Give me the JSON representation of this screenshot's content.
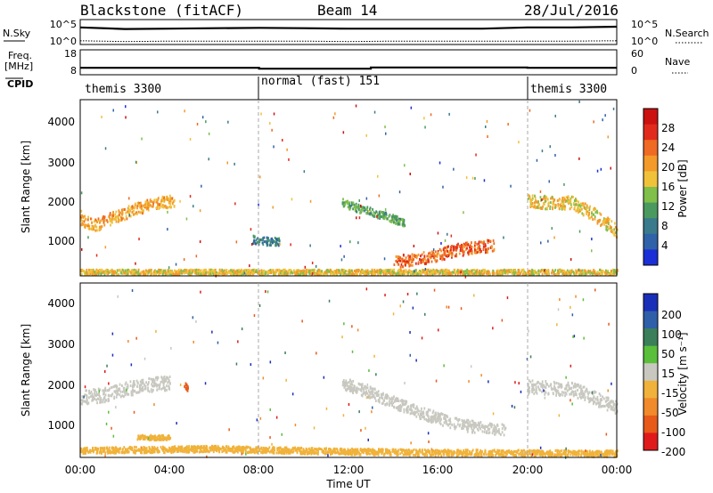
{
  "header": {
    "station": "Blackstone (fitACF)",
    "beam": "Beam 14",
    "date": "28/Jul/2016"
  },
  "noise_panel": {
    "left_label": "N.Sky",
    "right_label": "N.Search",
    "left_ticks": [
      "10^5",
      "10^0"
    ],
    "right_ticks": [
      "10^5",
      "10^0"
    ]
  },
  "freq_panel": {
    "left_label_line1": "Freq.",
    "left_label_line2": "[MHz]",
    "right_label": "Nave",
    "left_ticks": [
      "18",
      "8"
    ],
    "right_ticks": [
      "60",
      "0"
    ]
  },
  "cpid": {
    "label": "CPID",
    "segments": [
      {
        "name": "themis 3300",
        "start_h": 0,
        "end_h": 8
      },
      {
        "name": "normal (fast) 151",
        "start_h": 8,
        "end_h": 20
      },
      {
        "name": "themis 3300",
        "start_h": 20,
        "end_h": 24
      }
    ]
  },
  "xaxis": {
    "label": "Time UT",
    "ticks": [
      "00:00",
      "04:00",
      "08:00",
      "12:00",
      "16:00",
      "20:00",
      "00:00"
    ]
  },
  "power_panel": {
    "ylabel": "Slant Range [km]",
    "yticks": [
      "1000",
      "2000",
      "3000",
      "4000"
    ],
    "cbar_label": "Power [dB]",
    "cbar_ticks": [
      "4",
      "8",
      "12",
      "16",
      "20",
      "24",
      "28"
    ]
  },
  "velocity_panel": {
    "ylabel": "Slant Range [km]",
    "yticks": [
      "1000",
      "2000",
      "3000",
      "4000"
    ],
    "cbar_label": "Velocity [m s⁻¹]",
    "cbar_ticks": [
      "200",
      "100",
      "50",
      "15",
      "-15",
      "-50",
      "-100",
      "-200"
    ]
  },
  "colors": {
    "power_scale": [
      "#1b2fd6",
      "#2f62a8",
      "#3a7a8c",
      "#4a9a60",
      "#7fbf4a",
      "#f0c23a",
      "#f39a2a",
      "#ef6a22",
      "#e22a1c",
      "#cc1111"
    ],
    "velocity_scale": [
      "#1a2fb8",
      "#2f5fa8",
      "#3a7f5a",
      "#5abf3a",
      "#c8c8c0",
      "#f0b23a",
      "#f08a2a",
      "#e85a1a",
      "#e01a1a"
    ],
    "ground_scatter": "#c8c8c0"
  },
  "chart_data": [
    {
      "type": "line",
      "title": "",
      "series": [
        {
          "name": "N.Sky",
          "x": [
            0,
            2,
            4,
            6,
            8,
            10,
            12,
            14,
            16,
            18,
            20,
            22,
            24
          ],
          "y": [
            3.9,
            3.5,
            3.6,
            3.7,
            3.8,
            3.7,
            3.6,
            3.6,
            3.6,
            3.6,
            3.9,
            3.9,
            4.1
          ]
        },
        {
          "name": "N.Search",
          "x": [
            0,
            2,
            4,
            6,
            8,
            10,
            12,
            14,
            16,
            18,
            20,
            22,
            24
          ],
          "y": [
            0.5,
            0.3,
            0.4,
            0.4,
            0.4,
            0.4,
            0.3,
            0.4,
            0.4,
            0.4,
            0.4,
            0.4,
            0.5
          ]
        }
      ],
      "xlim": [
        0,
        24
      ]
    },
    {
      "type": "line",
      "title": "",
      "series": [
        {
          "name": "Freq.",
          "x": [
            0,
            8,
            8,
            13,
            13,
            20,
            20,
            24
          ],
          "y": [
            10.4,
            10.4,
            10.0,
            10.0,
            10.6,
            10.6,
            10.4,
            10.4
          ]
        }
      ],
      "ylabel": "Freq. [MHz]",
      "ylim": [
        8,
        18
      ],
      "xlim": [
        0,
        24
      ]
    },
    {
      "type": "heatmap",
      "title": "",
      "xlabel": "Time UT",
      "ylabel": "Slant Range [km]",
      "xlim": [
        0,
        24
      ],
      "ylim": [
        180,
        4500
      ],
      "colorbar": {
        "label": "Power [dB]",
        "range": [
          0,
          32
        ],
        "ticks": [
          4,
          8,
          12,
          16,
          20,
          24,
          28
        ]
      },
      "features": [
        {
          "x": [
            0.0,
            0.7,
            1.5,
            2.5,
            3.5,
            4.2
          ],
          "y": [
            1550,
            1450,
            1650,
            1850,
            2000,
            2050
          ],
          "value": 20,
          "width_km": 300
        },
        {
          "x": [
            7.7,
            8.2,
            8.9
          ],
          "y": [
            1100,
            1050,
            1050
          ],
          "value": 8,
          "width_km": 200
        },
        {
          "x": [
            11.7,
            12.5,
            13.5,
            14.5
          ],
          "y": [
            2000,
            1850,
            1700,
            1500
          ],
          "value": 12,
          "width_km": 200
        },
        {
          "x": [
            14.0,
            15.5,
            16.5,
            17.5,
            18.5
          ],
          "y": [
            550,
            650,
            800,
            900,
            950
          ],
          "value": 24,
          "width_km": 300
        },
        {
          "x": [
            20.0,
            21.0,
            22.0,
            23.0,
            24.0
          ],
          "y": [
            2050,
            2000,
            2000,
            1700,
            1300
          ],
          "value": 18,
          "width_km": 320
        },
        {
          "x": [
            0,
            4,
            8,
            12,
            16,
            20,
            24
          ],
          "y": [
            300,
            300,
            300,
            300,
            300,
            300,
            300
          ],
          "value": 18,
          "width_km": 120
        }
      ]
    },
    {
      "type": "heatmap",
      "title": "",
      "xlabel": "Time UT",
      "ylabel": "Slant Range [km]",
      "xlim": [
        0,
        24
      ],
      "ylim": [
        180,
        4500
      ],
      "colorbar": {
        "label": "Velocity [m s⁻¹]",
        "range": [
          -200,
          200
        ],
        "ticks": [
          200,
          100,
          50,
          15,
          -15,
          -50,
          -100,
          -200
        ]
      },
      "features": [
        {
          "x": [
            0.0,
            1.0,
            2.0,
            3.0,
            4.0
          ],
          "y": [
            1700,
            1750,
            1900,
            2000,
            2050
          ],
          "value": 0,
          "width_km": 350
        },
        {
          "x": [
            11.7,
            13.0,
            15.0,
            17.0,
            19.0
          ],
          "y": [
            2050,
            1800,
            1350,
            1000,
            900
          ],
          "value": 0,
          "width_km": 300
        },
        {
          "x": [
            20.0,
            22.0,
            24.0
          ],
          "y": [
            1950,
            1900,
            1450
          ],
          "value": 0,
          "width_km": 350
        },
        {
          "x": [
            4.6,
            4.8
          ],
          "y": [
            2100,
            1900
          ],
          "value": -150,
          "width_km": 200
        },
        {
          "x": [
            2.5,
            4.0
          ],
          "y": [
            700,
            700
          ],
          "value": -60,
          "width_km": 120
        },
        {
          "x": [
            0,
            6,
            12,
            18,
            24
          ],
          "y": [
            380,
            420,
            350,
            320,
            300
          ],
          "value": -40,
          "width_km": 150
        }
      ]
    }
  ]
}
